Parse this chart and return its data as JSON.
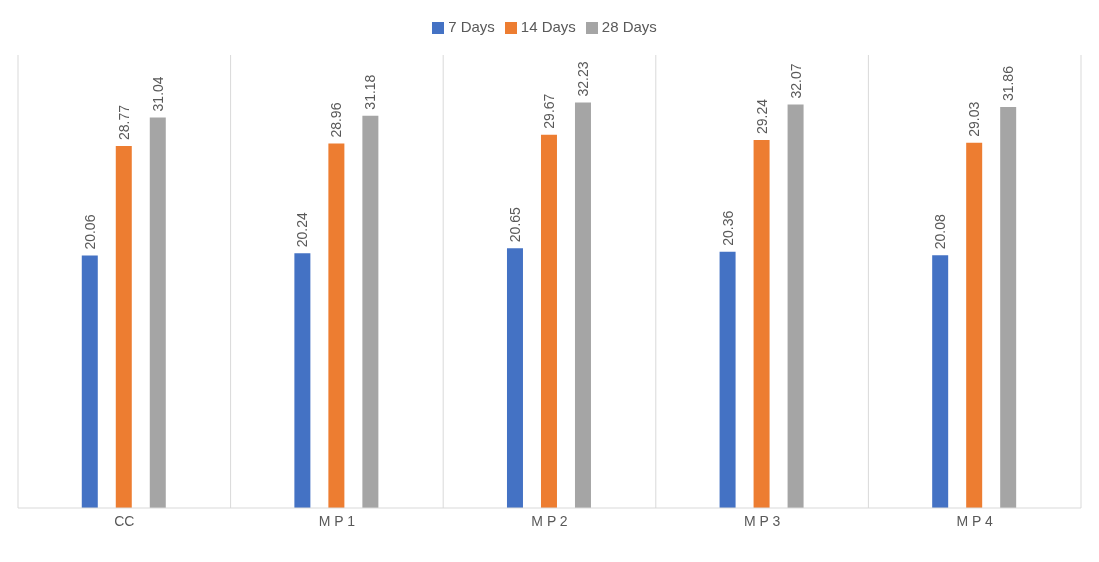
{
  "chart_data": {
    "type": "bar",
    "categories": [
      "CC",
      "M P 1",
      "M P 2",
      "M P 3",
      "M P 4"
    ],
    "series": [
      {
        "name": "7 Days",
        "color": "#4472c4",
        "values": [
          20.06,
          20.24,
          20.65,
          20.36,
          20.08
        ]
      },
      {
        "name": "14 Days",
        "color": "#ed7d31",
        "values": [
          28.77,
          28.96,
          29.67,
          29.24,
          29.03
        ]
      },
      {
        "name": "28 Days",
        "color": "#a5a5a5",
        "values": [
          31.04,
          31.18,
          32.23,
          32.07,
          31.86
        ]
      }
    ],
    "data_labels": true,
    "grid": "x",
    "legend": "top"
  }
}
